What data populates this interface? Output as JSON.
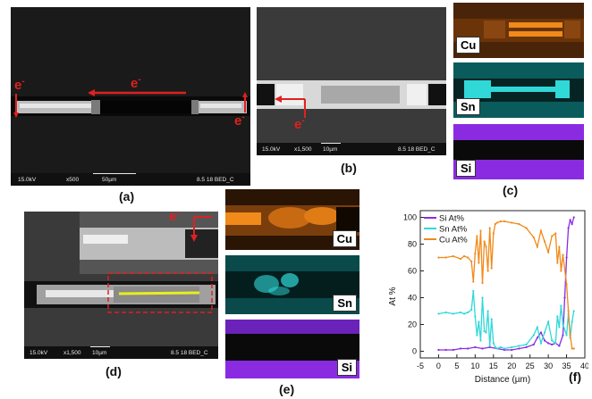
{
  "sem_a": {
    "kv": "15.0kV",
    "mag": "x500",
    "scale": "50µm",
    "info": "8.5 18 BED_C"
  },
  "sem_b": {
    "kv": "15.0kV",
    "mag": "x1,500",
    "scale": "10µm",
    "info": "8.5 18 BED_C"
  },
  "sem_d": {
    "kv": "15.0kV",
    "mag": "x1,500",
    "scale": "10µm",
    "info": "8.5 18 BED_C"
  },
  "electron": {
    "base": "e",
    "sup": "-"
  },
  "labels": {
    "a": "(a)",
    "b": "(b)",
    "c": "(c)",
    "d": "(d)",
    "e": "(e)",
    "f": "(f)"
  },
  "maps": {
    "cu": "Cu",
    "sn": "Sn",
    "si": "Si"
  },
  "colors": {
    "cu_map": "#f08a1a",
    "sn_map": "#30d8d8",
    "si_map": "#8a2be2",
    "electron": "#e02020"
  },
  "chart_data": {
    "type": "line",
    "xlabel": "Distance (µm)",
    "ylabel": "At %",
    "xlim": [
      -5,
      40
    ],
    "ylim": [
      -5,
      105
    ],
    "xticks": [
      -5,
      0,
      5,
      10,
      15,
      20,
      25,
      30,
      35,
      40
    ],
    "yticks": [
      0,
      20,
      40,
      60,
      80,
      100
    ],
    "legend_position": "top-left",
    "series": [
      {
        "name": "Si At%",
        "color": "#8a2be2",
        "x": [
          0,
          2,
          4,
          6,
          8,
          10,
          12,
          14,
          16,
          18,
          20,
          22,
          24,
          26,
          27,
          28,
          29,
          30,
          31,
          32,
          33,
          34,
          34.5,
          35,
          35.5,
          36,
          36.5,
          37
        ],
        "y": [
          1,
          1,
          1,
          2,
          2,
          3,
          2,
          3,
          2,
          1,
          1,
          2,
          3,
          5,
          10,
          14,
          8,
          6,
          5,
          6,
          4,
          12,
          40,
          70,
          92,
          98,
          95,
          100
        ]
      },
      {
        "name": "Sn At%",
        "color": "#30d8d8",
        "x": [
          0,
          2,
          4,
          6,
          7,
          8,
          9,
          9.5,
          10,
          10.5,
          11,
          11.5,
          12,
          12.5,
          13,
          13.5,
          14,
          14.5,
          15,
          15.5,
          16,
          17,
          18,
          20,
          22,
          24,
          26,
          27,
          28,
          29,
          30,
          31,
          32,
          32.5,
          33,
          33.5,
          34,
          35,
          35.5,
          36,
          36.5,
          37
        ],
        "y": [
          28,
          29,
          28,
          29,
          28,
          29,
          31,
          45,
          26,
          12,
          22,
          8,
          40,
          15,
          14,
          30,
          4,
          24,
          6,
          3,
          2,
          3,
          2,
          3,
          4,
          5,
          12,
          18,
          6,
          14,
          22,
          8,
          6,
          26,
          18,
          34,
          20,
          12,
          28,
          10,
          22,
          30
        ]
      },
      {
        "name": "Cu At%",
        "color": "#f08a1a",
        "x": [
          0,
          2,
          4,
          6,
          7,
          8,
          9,
          9.5,
          10,
          10.5,
          11,
          11.5,
          12,
          12.5,
          13,
          13.5,
          14,
          14.5,
          15,
          15.5,
          16,
          17,
          18,
          20,
          22,
          24,
          26,
          27,
          28,
          29,
          30,
          31,
          32,
          32.5,
          33,
          33.5,
          34,
          35,
          35.5,
          36,
          36.5,
          37
        ],
        "y": [
          70,
          70,
          71,
          69,
          71,
          70,
          67,
          52,
          73,
          86,
          66,
          90,
          51,
          82,
          78,
          60,
          92,
          62,
          88,
          95,
          96,
          97,
          97,
          96,
          95,
          92,
          85,
          78,
          90,
          82,
          74,
          86,
          88,
          66,
          78,
          60,
          72,
          50,
          30,
          12,
          2,
          2
        ]
      }
    ]
  }
}
